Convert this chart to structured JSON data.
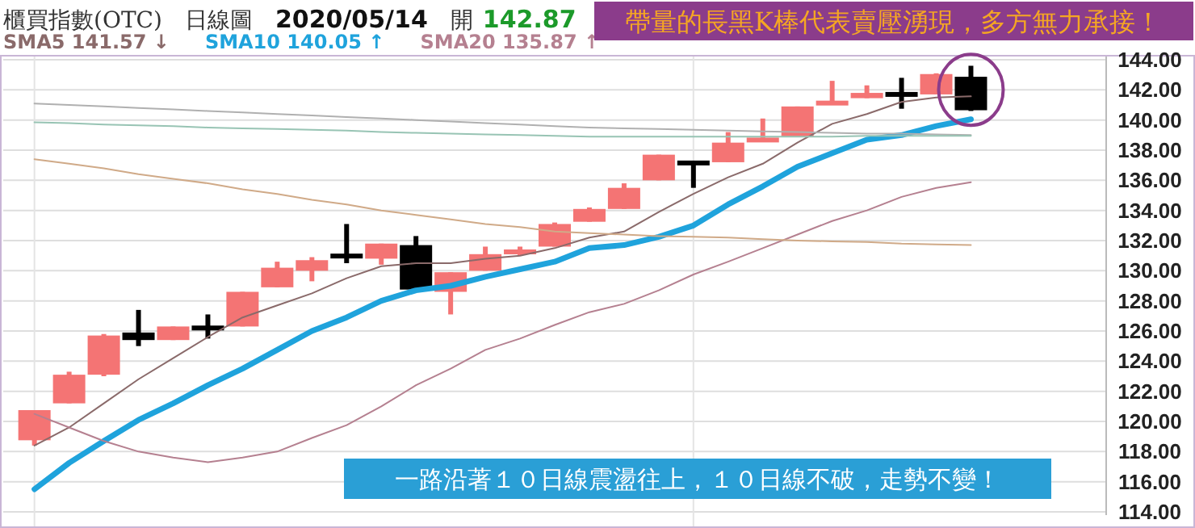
{
  "chart_data": {
    "type": "candlestick",
    "title": "櫃買指數(OTC)",
    "subtitle": "日線圖",
    "annotations": [
      "2020/05/14",
      "開",
      "142.87",
      "帶量的長黑K棒代表賣壓湧現，多方無力承接！",
      "一路沿著１０日線震盪往上，１０日線不破，走勢不變！"
    ],
    "categories": [
      null,
      null,
      null,
      null,
      null,
      null,
      null,
      null,
      null,
      null,
      null,
      null,
      null,
      null,
      null,
      null,
      null,
      null,
      null,
      null,
      null,
      null,
      null,
      null,
      null,
      null,
      null,
      null
    ],
    "ohlc": [
      [
        118.75,
        120.75,
        118.4,
        120.75
      ],
      [
        121.2,
        123.3,
        121.2,
        123.1
      ],
      [
        123.1,
        125.8,
        123.0,
        125.7
      ],
      [
        125.9,
        127.4,
        125.0,
        125.4
      ],
      [
        125.4,
        126.3,
        125.4,
        126.3
      ],
      [
        126.3,
        127.1,
        125.5,
        126.1
      ],
      [
        126.3,
        128.6,
        126.3,
        128.6
      ],
      [
        128.9,
        130.6,
        128.9,
        130.2
      ],
      [
        130.0,
        130.9,
        129.3,
        130.7
      ],
      [
        131.05,
        133.1,
        130.5,
        130.9
      ],
      [
        130.8,
        131.8,
        130.4,
        131.8
      ],
      [
        131.7,
        132.3,
        128.6,
        128.75
      ],
      [
        128.6,
        129.9,
        127.1,
        129.9
      ],
      [
        130.0,
        131.6,
        130.0,
        131.1
      ],
      [
        131.1,
        131.6,
        131.0,
        131.4
      ],
      [
        131.6,
        133.2,
        131.6,
        133.1
      ],
      [
        133.25,
        134.2,
        133.25,
        134.1
      ],
      [
        134.1,
        135.8,
        134.1,
        135.5
      ],
      [
        136.0,
        137.7,
        136.0,
        137.7
      ],
      [
        137.2,
        137.25,
        135.5,
        137.1
      ],
      [
        137.2,
        139.2,
        137.2,
        138.5
      ],
      [
        138.6,
        140.1,
        138.6,
        138.75
      ],
      [
        138.9,
        140.9,
        138.9,
        140.9
      ],
      [
        141.05,
        142.6,
        141.05,
        141.2
      ],
      [
        141.45,
        142.3,
        141.45,
        141.8
      ],
      [
        141.75,
        142.8,
        140.75,
        141.65
      ],
      [
        141.7,
        143.1,
        141.7,
        143.05
      ],
      [
        142.87,
        143.6,
        140.6,
        140.65
      ]
    ],
    "colors": [
      "#f47474",
      "#f47474",
      "#f47474",
      "#000000",
      "#f47474",
      "#000000",
      "#f47474",
      "#f47474",
      "#f47474",
      "#000000",
      "#f47474",
      "#000000",
      "#f47474",
      "#f47474",
      "#f47474",
      "#f47474",
      "#f47474",
      "#f47474",
      "#f47474",
      "#000000",
      "#f47474",
      "#f47474",
      "#f47474",
      "#f47474",
      "#f47474",
      "#000000",
      "#f47474",
      "#000000"
    ],
    "series": [
      {
        "name": "SMA5 141.57 ↓",
        "type": "line",
        "color": "#8a6a6a",
        "values": [
          118.4,
          119.6,
          121.2,
          122.8,
          124.2,
          125.6,
          126.9,
          127.7,
          128.5,
          129.5,
          130.3,
          130.5,
          130.5,
          130.8,
          131.0,
          131.5,
          132.2,
          132.6,
          133.9,
          135.1,
          136.2,
          137.1,
          138.5,
          139.75,
          140.4,
          141.2,
          141.5,
          141.57
        ]
      },
      {
        "name": "SMA10 140.05 ↑",
        "type": "line",
        "color": "#1fa3dc",
        "values": [
          115.5,
          117.25,
          118.7,
          120.1,
          121.2,
          122.4,
          123.5,
          124.75,
          126.0,
          126.9,
          128.0,
          128.7,
          129.0,
          129.6,
          130.1,
          130.6,
          131.5,
          131.7,
          132.25,
          133.0,
          134.4,
          135.6,
          136.9,
          137.8,
          138.7,
          139.0,
          139.6,
          140.05
        ]
      },
      {
        "name": "SMA20 135.87 ↑",
        "type": "line",
        "color": "#b58090",
        "values": [
          120.5,
          119.6,
          118.7,
          118.0,
          117.6,
          117.3,
          117.6,
          118.0,
          118.9,
          119.75,
          121.0,
          122.4,
          123.5,
          124.75,
          125.5,
          126.4,
          127.25,
          127.8,
          128.7,
          129.75,
          130.6,
          131.5,
          132.4,
          133.3,
          134.0,
          134.9,
          135.5,
          135.87
        ]
      },
      {
        "type": "line",
        "color": "#d0aa88",
        "values": [
          137.4,
          137.1,
          136.8,
          136.4,
          136.1,
          135.8,
          135.4,
          135.1,
          134.7,
          134.4,
          134.0,
          133.7,
          133.4,
          133.1,
          132.9,
          132.6,
          132.5,
          132.4,
          132.3,
          132.25,
          132.2,
          132.1,
          132.0,
          131.95,
          131.9,
          131.8,
          131.75,
          131.7
        ]
      },
      {
        "type": "line",
        "color": "#b0b0b0",
        "values": [
          141.1,
          141.0,
          140.9,
          140.8,
          140.7,
          140.6,
          140.5,
          140.4,
          140.3,
          140.2,
          140.1,
          140.0,
          139.9,
          139.8,
          139.7,
          139.6,
          139.5,
          139.45,
          139.4,
          139.35,
          139.3,
          139.25,
          139.2,
          139.15,
          139.1,
          139.1,
          139.05,
          139.0
        ]
      },
      {
        "type": "line",
        "color": "#98c4b4",
        "values": [
          139.85,
          139.8,
          139.7,
          139.65,
          139.6,
          139.5,
          139.45,
          139.4,
          139.35,
          139.3,
          139.2,
          139.15,
          139.1,
          139.05,
          139.0,
          138.95,
          138.9,
          138.9,
          138.9,
          138.9,
          138.9,
          138.9,
          138.9,
          138.9,
          138.95,
          138.95,
          138.95,
          138.95
        ]
      }
    ],
    "ylim": [
      114,
      144
    ],
    "yticks": [
      {
        "value": 114,
        "label": "114.00"
      },
      {
        "value": 116,
        "label": "116.00"
      },
      {
        "value": 118,
        "label": "118.00"
      },
      {
        "value": 120,
        "label": "120.00"
      },
      {
        "value": 122,
        "label": "122.00"
      },
      {
        "value": 124,
        "label": "124.00"
      },
      {
        "value": 126,
        "label": "126.00"
      },
      {
        "value": 128,
        "label": "128.00"
      },
      {
        "value": 130,
        "label": "130.00"
      },
      {
        "value": 132,
        "label": "132.00"
      },
      {
        "value": 134,
        "label": "134.00"
      },
      {
        "value": 136,
        "label": "136.00"
      },
      {
        "value": 138,
        "label": "138.00"
      },
      {
        "value": 140,
        "label": "140.00"
      },
      {
        "value": 142,
        "label": "142.00"
      },
      {
        "value": 144,
        "label": "144.00"
      }
    ],
    "grid": "y",
    "legend": "top"
  }
}
